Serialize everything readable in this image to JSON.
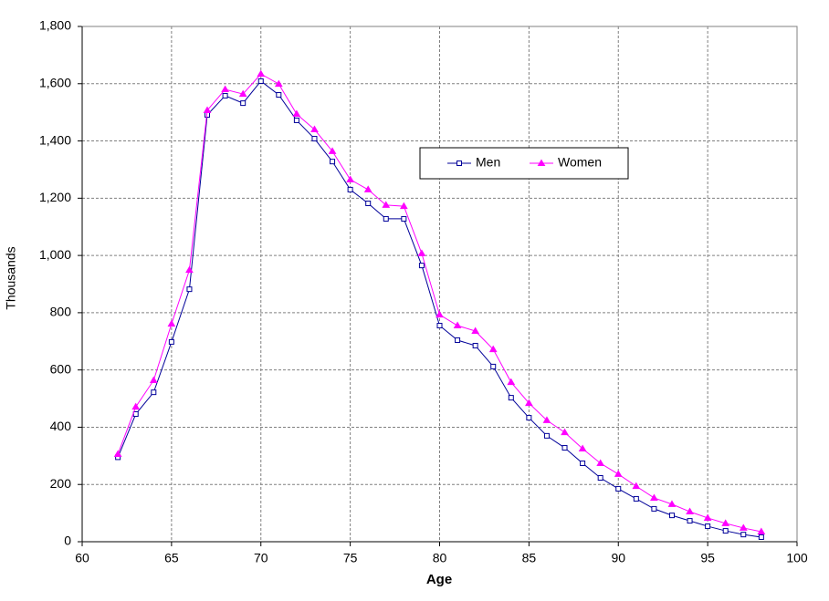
{
  "chart_data": {
    "type": "line",
    "xlabel": "Age",
    "ylabel": "Thousands",
    "x": [
      62,
      63,
      64,
      65,
      66,
      67,
      68,
      69,
      70,
      71,
      72,
      73,
      74,
      75,
      76,
      77,
      78,
      79,
      80,
      81,
      82,
      83,
      84,
      85,
      86,
      87,
      88,
      89,
      90,
      91,
      92,
      93,
      94,
      95,
      96,
      97,
      98
    ],
    "series": [
      {
        "name": "Men",
        "color": "#000099",
        "marker": "square",
        "values": [
          295,
          446,
          522,
          698,
          882,
          1491,
          1558,
          1532,
          1609,
          1561,
          1472,
          1408,
          1328,
          1230,
          1182,
          1128,
          1128,
          965,
          755,
          704,
          685,
          612,
          503,
          433,
          370,
          328,
          274,
          223,
          185,
          150,
          115,
          92,
          73,
          54,
          38,
          25,
          16
        ]
      },
      {
        "name": "Women",
        "color": "#ff00ff",
        "marker": "triangle",
        "values": [
          306,
          471,
          564,
          761,
          949,
          1507,
          1580,
          1564,
          1634,
          1599,
          1494,
          1440,
          1364,
          1265,
          1230,
          1176,
          1172,
          1007,
          793,
          755,
          736,
          672,
          557,
          484,
          424,
          382,
          325,
          274,
          236,
          194,
          153,
          131,
          105,
          83,
          64,
          48,
          35
        ]
      }
    ],
    "xlim": [
      60,
      100
    ],
    "xticks": [
      60,
      65,
      70,
      75,
      80,
      85,
      90,
      95,
      100
    ],
    "ylim": [
      0,
      1800
    ],
    "yticks": [
      0,
      200,
      400,
      600,
      800,
      {
        "value": 1000,
        "label": "1,000"
      },
      {
        "value": 1200,
        "label": "1,200"
      },
      {
        "value": 1400,
        "label": "1,400"
      },
      {
        "value": 1600,
        "label": "1,600"
      },
      {
        "value": 1800,
        "label": "1,800"
      }
    ],
    "grid": true,
    "legend": "upper-center"
  }
}
